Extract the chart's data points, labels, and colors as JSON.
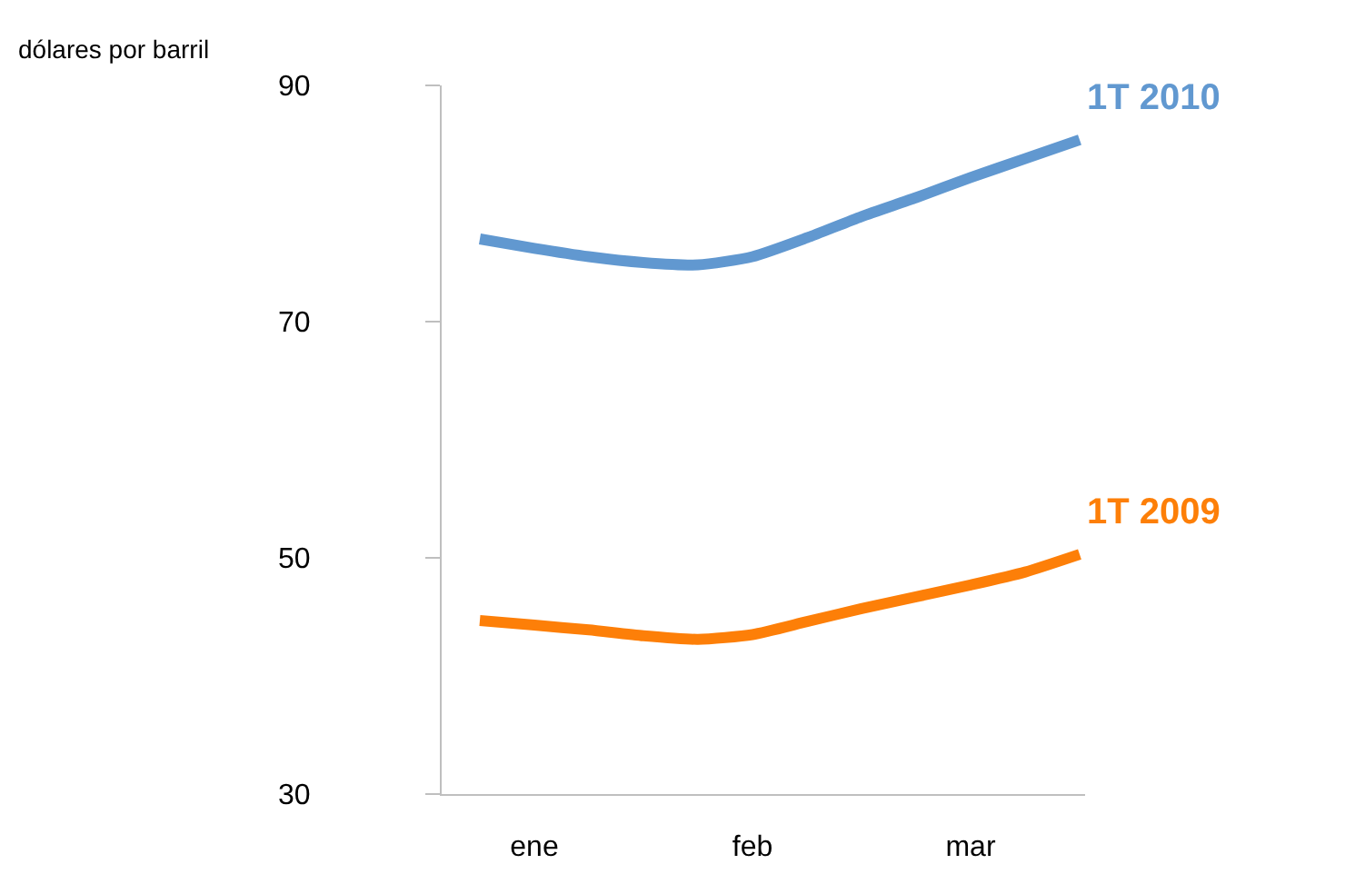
{
  "chart_data": {
    "type": "line",
    "ylabel": "dólares por barril",
    "ylim": [
      30,
      90
    ],
    "yticks": [
      30,
      50,
      70,
      90
    ],
    "categories": [
      null,
      "ene",
      null,
      null,
      null,
      "feb",
      null,
      null,
      null,
      "mar",
      null,
      null
    ],
    "legend": false,
    "marker": "none",
    "line_style": "solid",
    "series": [
      {
        "name": "1T 2010",
        "color": "#6198d0",
        "values": [
          77.0,
          76.2,
          75.5,
          75.0,
          74.8,
          75.5,
          77.1,
          78.9,
          80.5,
          82.2,
          83.8,
          85.4
        ]
      },
      {
        "name": "1T 2009",
        "color": "#fd7f08",
        "values": [
          44.7,
          44.3,
          43.9,
          43.4,
          43.1,
          43.5,
          44.6,
          45.7,
          46.7,
          47.7,
          48.8,
          50.3
        ]
      }
    ]
  }
}
